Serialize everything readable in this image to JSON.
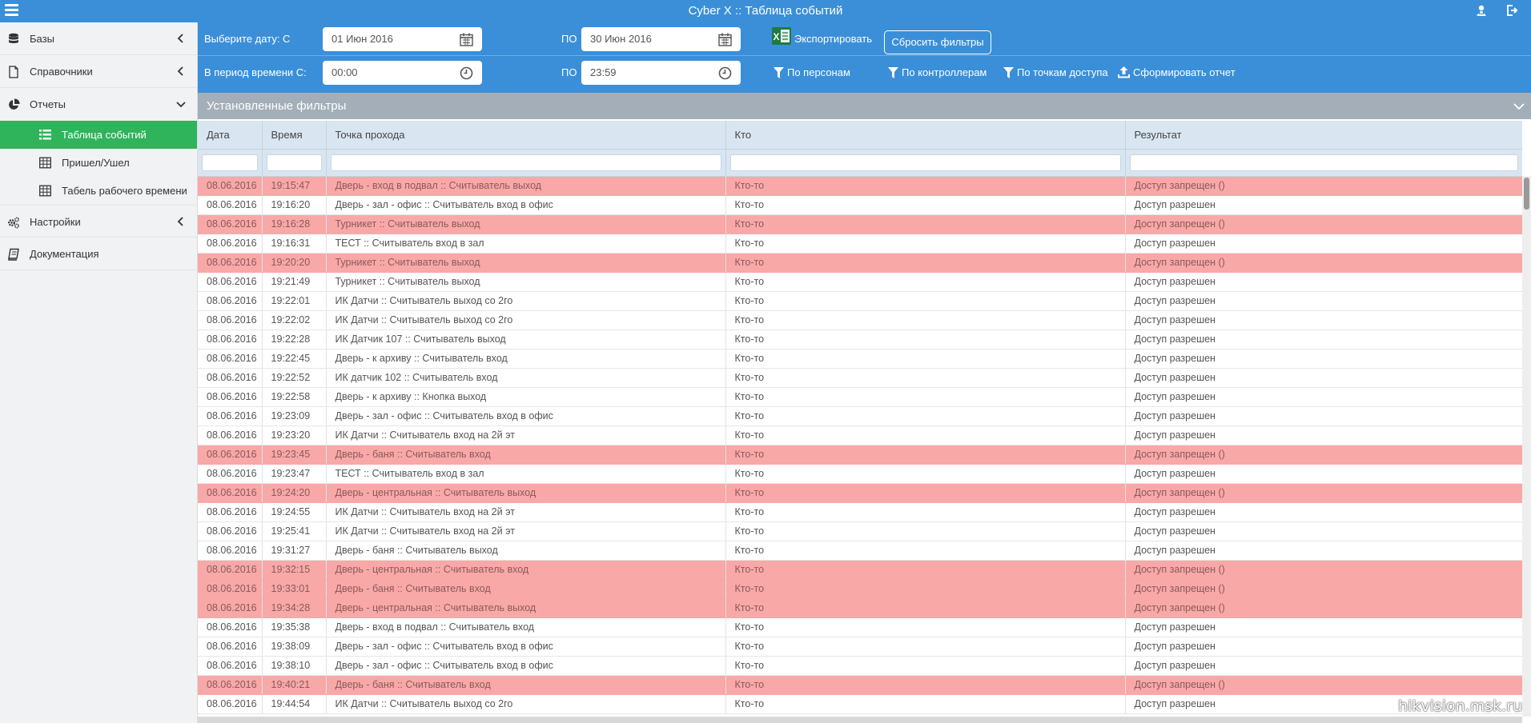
{
  "app": {
    "title": "Cyber X :: Таблица событий"
  },
  "sidebar": {
    "items": [
      {
        "label": "Базы",
        "icon": "database-icon"
      },
      {
        "label": "Справочники",
        "icon": "file-icon"
      },
      {
        "label": "Отчеты",
        "icon": "pie-chart-icon"
      }
    ],
    "subitems": [
      {
        "label": "Таблица событий",
        "icon": "list-icon",
        "active": true
      },
      {
        "label": "Пришел/Ушел",
        "icon": "table-icon"
      },
      {
        "label": "Табель рабочего времени",
        "icon": "table-icon"
      }
    ],
    "items2": [
      {
        "label": "Настройки",
        "icon": "gears-icon"
      },
      {
        "label": "Документация",
        "icon": "book-icon"
      }
    ]
  },
  "filters": {
    "date_label": "Выберите дату: С",
    "date_from": "01 Июн 2016",
    "to_label": "ПО",
    "date_to": "30 Июн 2016",
    "export_label": "Экспортировать",
    "reset_label": "Сбросить фильтры",
    "time_label": "В период времени С:",
    "time_from": "00:00",
    "time_to": "23:59",
    "by_persons": "По персонам",
    "by_controllers": "По контроллерам",
    "by_access_points": "По точкам доступа",
    "make_report": "Сформировать отчет"
  },
  "panel": {
    "title": "Установленные фильтры"
  },
  "table": {
    "columns": [
      "Дата",
      "Время",
      "Точка прохода",
      "Кто",
      "Результат"
    ],
    "rows": [
      [
        "08.06.2016",
        "19:15:47",
        "Дверь - вход в подвал :: Считыватель выход",
        "Кто-то",
        "Доступ запрещен ()",
        true
      ],
      [
        "08.06.2016",
        "19:16:20",
        "Дверь - зал - офис :: Считыватель вход в офис",
        "Кто-то",
        "Доступ разрешен",
        false
      ],
      [
        "08.06.2016",
        "19:16:28",
        "Турникет :: Считыватель выход",
        "Кто-то",
        "Доступ запрещен ()",
        true
      ],
      [
        "08.06.2016",
        "19:16:31",
        "ТЕСТ :: Считыватель вход в зал",
        "Кто-то",
        "Доступ разрешен",
        false
      ],
      [
        "08.06.2016",
        "19:20:20",
        "Турникет :: Считыватель выход",
        "Кто-то",
        "Доступ запрещен ()",
        true
      ],
      [
        "08.06.2016",
        "19:21:49",
        "Турникет :: Считыватель выход",
        "Кто-то",
        "Доступ разрешен",
        false
      ],
      [
        "08.06.2016",
        "19:22:01",
        "ИК Датчи :: Считыватель выход со 2го",
        "Кто-то",
        "Доступ разрешен",
        false
      ],
      [
        "08.06.2016",
        "19:22:02",
        "ИК Датчи :: Считыватель выход со 2го",
        "Кто-то",
        "Доступ разрешен",
        false
      ],
      [
        "08.06.2016",
        "19:22:28",
        "ИК Датчик 107 :: Считыватель выход",
        "Кто-то",
        "Доступ разрешен",
        false
      ],
      [
        "08.06.2016",
        "19:22:45",
        "Дверь - к архиву :: Считыватель вход",
        "Кто-то",
        "Доступ разрешен",
        false
      ],
      [
        "08.06.2016",
        "19:22:52",
        "ИК датчик 102 :: Считыватель вход",
        "Кто-то",
        "Доступ разрешен",
        false
      ],
      [
        "08.06.2016",
        "19:22:58",
        "Дверь - к архиву :: Кнопка выход",
        "Кто-то",
        "Доступ разрешен",
        false
      ],
      [
        "08.06.2016",
        "19:23:09",
        "Дверь - зал - офис :: Считыватель вход в офис",
        "Кто-то",
        "Доступ разрешен",
        false
      ],
      [
        "08.06.2016",
        "19:23:20",
        "ИК Датчи :: Считыватель вход на 2й эт",
        "Кто-то",
        "Доступ разрешен",
        false
      ],
      [
        "08.06.2016",
        "19:23:45",
        "Дверь - баня :: Считыватель вход",
        "Кто-то",
        "Доступ запрещен ()",
        true
      ],
      [
        "08.06.2016",
        "19:23:47",
        "ТЕСТ :: Считыватель вход в зал",
        "Кто-то",
        "Доступ разрешен",
        false
      ],
      [
        "08.06.2016",
        "19:24:20",
        "Дверь - центральная :: Считыватель выход",
        "Кто-то",
        "Доступ запрещен ()",
        true
      ],
      [
        "08.06.2016",
        "19:24:55",
        "ИК Датчи :: Считыватель вход на 2й эт",
        "Кто-то",
        "Доступ разрешен",
        false
      ],
      [
        "08.06.2016",
        "19:25:41",
        "ИК Датчи :: Считыватель вход на 2й эт",
        "Кто-то",
        "Доступ разрешен",
        false
      ],
      [
        "08.06.2016",
        "19:31:27",
        "Дверь - баня :: Считыватель выход",
        "Кто-то",
        "Доступ разрешен",
        false
      ],
      [
        "08.06.2016",
        "19:32:15",
        "Дверь - центральная :: Считыватель вход",
        "Кто-то",
        "Доступ запрещен ()",
        true
      ],
      [
        "08.06.2016",
        "19:33:01",
        "Дверь - баня :: Считыватель вход",
        "Кто-то",
        "Доступ запрещен ()",
        true
      ],
      [
        "08.06.2016",
        "19:34:28",
        "Дверь - центральная :: Считыватель выход",
        "Кто-то",
        "Доступ запрещен ()",
        true
      ],
      [
        "08.06.2016",
        "19:35:38",
        "Дверь - вход в подвал :: Считыватель вход",
        "Кто-то",
        "Доступ разрешен",
        false
      ],
      [
        "08.06.2016",
        "19:38:09",
        "Дверь - зал - офис :: Считыватель вход в офис",
        "Кто-то",
        "Доступ разрешен",
        false
      ],
      [
        "08.06.2016",
        "19:38:10",
        "Дверь - зал - офис :: Считыватель вход в офис",
        "Кто-то",
        "Доступ разрешен",
        false
      ],
      [
        "08.06.2016",
        "19:40:21",
        "Дверь - баня :: Считыватель вход",
        "Кто-то",
        "Доступ запрещен ()",
        true
      ],
      [
        "08.06.2016",
        "19:44:54",
        "ИК Датчи :: Считыватель выход со 2го",
        "Кто-то",
        "Доступ разрешен",
        false
      ]
    ]
  },
  "watermark": "hikvision.msk.ru",
  "colors": {
    "accent": "#3a8fd8",
    "active": "#2fb35b",
    "denied": "#f9a8a8",
    "header": "#d9e6f2",
    "panel": "#a3aeb8"
  }
}
